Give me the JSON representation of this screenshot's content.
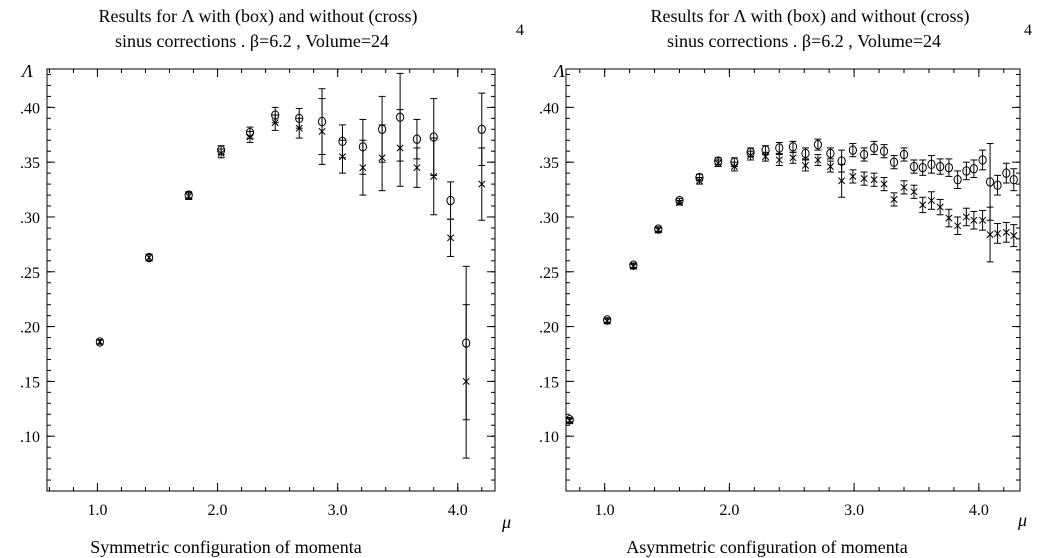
{
  "chart_data": [
    {
      "type": "scatter",
      "title_line1": "Results for Λ with (box) and without (cross)",
      "title_line2": "sinus corrections . β=6.2    ,    Volume=24",
      "title_sup": "4",
      "xlabel": "Symmetric configuration of momenta",
      "x_axis_symbol": "μ",
      "y_axis_symbol": "Λ",
      "xlim": [
        0.58,
        4.31
      ],
      "ylim": [
        0.05,
        0.435
      ],
      "x_ticks": [
        1.0,
        2.0,
        3.0,
        4.0
      ],
      "x_tick_labels": [
        "1.0",
        "2.0",
        "3.0",
        "4.0"
      ],
      "y_ticks": [
        0.1,
        0.15,
        0.2,
        0.25,
        0.3,
        0.35,
        0.4
      ],
      "y_tick_labels": [
        ".10",
        ".15",
        ".20",
        ".25",
        ".30",
        ".35",
        ".40"
      ],
      "grid": false,
      "series": [
        {
          "name": "box",
          "marker": "circle",
          "x": [
            1.02,
            1.43,
            1.76,
            2.03,
            2.27,
            2.48,
            2.68,
            2.87,
            3.04,
            3.21,
            3.37,
            3.52,
            3.66,
            3.8,
            3.94,
            4.07,
            4.2
          ],
          "y": [
            0.186,
            0.263,
            0.32,
            0.361,
            0.377,
            0.393,
            0.39,
            0.387,
            0.369,
            0.364,
            0.38,
            0.391,
            0.371,
            0.373,
            0.315,
            0.185,
            0.38
          ],
          "err": [
            0.002,
            0.003,
            0.003,
            0.004,
            0.005,
            0.007,
            0.009,
            0.03,
            0.015,
            0.025,
            0.03,
            0.04,
            0.018,
            0.035,
            0.017,
            0.07,
            0.033
          ]
        },
        {
          "name": "cross",
          "marker": "cross",
          "x": [
            1.02,
            1.43,
            1.76,
            2.03,
            2.27,
            2.48,
            2.68,
            2.87,
            3.04,
            3.21,
            3.37,
            3.52,
            3.66,
            3.8,
            3.94,
            4.07,
            4.2
          ],
          "y": [
            0.186,
            0.263,
            0.319,
            0.358,
            0.373,
            0.386,
            0.381,
            0.378,
            0.355,
            0.345,
            0.354,
            0.363,
            0.345,
            0.337,
            0.281,
            0.15,
            0.33
          ],
          "err": [
            0.002,
            0.003,
            0.003,
            0.004,
            0.005,
            0.007,
            0.009,
            0.03,
            0.015,
            0.025,
            0.03,
            0.035,
            0.018,
            0.035,
            0.017,
            0.07,
            0.033
          ]
        }
      ]
    },
    {
      "type": "scatter",
      "title_line1": "Results for Λ with (box) and without (cross)",
      "title_line2": "sinus corrections . β=6.2    ,    Volume=24",
      "title_sup": "4",
      "xlabel": "Asymmetric configuration of momenta",
      "x_axis_symbol": "μ",
      "y_axis_symbol": "Λ",
      "xlim": [
        0.69,
        4.33
      ],
      "ylim": [
        0.05,
        0.435
      ],
      "x_ticks": [
        1.0,
        2.0,
        3.0,
        4.0
      ],
      "x_tick_labels": [
        "1.0",
        "2.0",
        "3.0",
        "4.0"
      ],
      "y_ticks": [
        0.1,
        0.15,
        0.2,
        0.25,
        0.3,
        0.35,
        0.4
      ],
      "y_tick_labels": [
        ".10",
        ".15",
        ".20",
        ".25",
        ".30",
        ".35",
        ".40"
      ],
      "grid": false,
      "series": [
        {
          "name": "box",
          "marker": "circle",
          "x": [
            0.72,
            1.02,
            1.23,
            1.43,
            1.6,
            1.76,
            1.91,
            2.04,
            2.17,
            2.29,
            2.4,
            2.51,
            2.61,
            2.71,
            2.81,
            2.9,
            2.99,
            3.08,
            3.16,
            3.24,
            3.32,
            3.4,
            3.48,
            3.55,
            3.62,
            3.69,
            3.76,
            3.83,
            3.9,
            3.96,
            4.03,
            4.09,
            4.15,
            4.22,
            4.28
          ],
          "y": [
            0.115,
            0.206,
            0.256,
            0.289,
            0.315,
            0.336,
            0.351,
            0.35,
            0.359,
            0.361,
            0.363,
            0.364,
            0.358,
            0.366,
            0.358,
            0.351,
            0.361,
            0.357,
            0.363,
            0.36,
            0.35,
            0.357,
            0.346,
            0.345,
            0.348,
            0.346,
            0.345,
            0.334,
            0.342,
            0.344,
            0.352,
            0.332,
            0.329,
            0.34,
            0.334
          ],
          "err": [
            0.002,
            0.002,
            0.002,
            0.002,
            0.002,
            0.003,
            0.003,
            0.004,
            0.004,
            0.004,
            0.005,
            0.005,
            0.005,
            0.005,
            0.005,
            0.01,
            0.006,
            0.006,
            0.006,
            0.006,
            0.006,
            0.006,
            0.006,
            0.007,
            0.008,
            0.007,
            0.008,
            0.008,
            0.008,
            0.008,
            0.009,
            0.035,
            0.009,
            0.009,
            0.01
          ]
        },
        {
          "name": "cross",
          "marker": "cross",
          "x": [
            0.72,
            1.02,
            1.23,
            1.43,
            1.6,
            1.76,
            1.91,
            2.04,
            2.17,
            2.29,
            2.4,
            2.51,
            2.61,
            2.71,
            2.81,
            2.9,
            2.99,
            3.08,
            3.16,
            3.24,
            3.32,
            3.4,
            3.48,
            3.55,
            3.62,
            3.69,
            3.76,
            3.83,
            3.9,
            3.96,
            4.03,
            4.09,
            4.15,
            4.22,
            4.28
          ],
          "y": [
            0.114,
            0.205,
            0.255,
            0.288,
            0.313,
            0.333,
            0.349,
            0.346,
            0.356,
            0.355,
            0.352,
            0.354,
            0.347,
            0.352,
            0.346,
            0.333,
            0.337,
            0.335,
            0.334,
            0.33,
            0.316,
            0.327,
            0.323,
            0.311,
            0.315,
            0.309,
            0.299,
            0.292,
            0.3,
            0.297,
            0.297,
            0.284,
            0.285,
            0.286,
            0.283
          ],
          "err": [
            0.002,
            0.002,
            0.002,
            0.002,
            0.002,
            0.003,
            0.003,
            0.004,
            0.004,
            0.004,
            0.005,
            0.005,
            0.005,
            0.005,
            0.005,
            0.015,
            0.006,
            0.006,
            0.006,
            0.006,
            0.006,
            0.006,
            0.006,
            0.007,
            0.008,
            0.007,
            0.008,
            0.008,
            0.008,
            0.008,
            0.009,
            0.025,
            0.009,
            0.009,
            0.01
          ]
        }
      ]
    }
  ]
}
